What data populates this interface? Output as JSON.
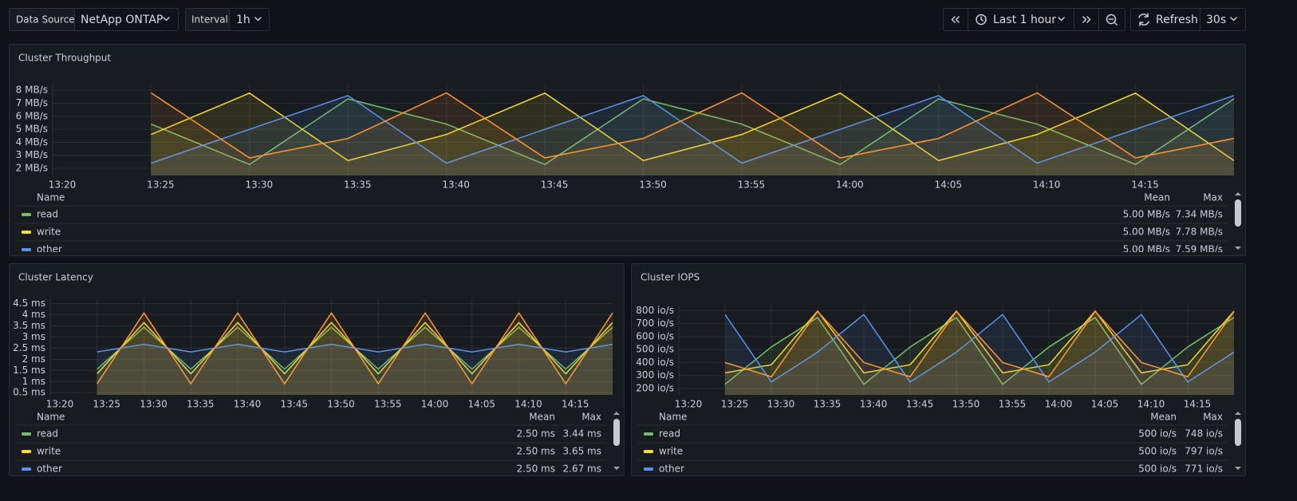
{
  "toolbar": {
    "data_source_label": "Data Source",
    "data_source": "NetApp ONTAP",
    "interval_label": "Interval",
    "interval": "1h",
    "time_range": "Last 1 hour",
    "refresh": "Refresh",
    "refresh_interval": "30s"
  },
  "chart_data": [
    {
      "type": "line",
      "title": "Cluster Throughput",
      "x": [
        "13:25",
        "13:30",
        "13:35",
        "13:40",
        "13:45",
        "13:50",
        "13:55",
        "14:00",
        "14:05",
        "14:10",
        "14:15",
        "14:20"
      ],
      "xlim": [
        "13:20",
        "14:20"
      ],
      "xticks": [
        "13:20",
        "13:25",
        "13:30",
        "13:35",
        "13:40",
        "13:45",
        "13:50",
        "13:55",
        "14:00",
        "14:05",
        "14:10",
        "14:15"
      ],
      "ylim": [
        1.45,
        8.5
      ],
      "yticks": [
        {
          "value": 2,
          "label": "2 MB/s"
        },
        {
          "value": 3,
          "label": "3 MB/s"
        },
        {
          "value": 4,
          "label": "4 MB/s"
        },
        {
          "value": 5,
          "label": "5 MB/s"
        },
        {
          "value": 6,
          "label": "6 MB/s"
        },
        {
          "value": 7,
          "label": "7 MB/s"
        },
        {
          "value": 8,
          "label": "8 MB/s"
        }
      ],
      "grid": true,
      "fill": true,
      "legend_header": [
        "Name",
        "Mean",
        "Max"
      ],
      "series": [
        {
          "name": "read",
          "color": "#73bf69",
          "values": [
            5.4,
            2.3,
            7.34,
            5.4,
            2.3,
            7.34,
            5.4,
            2.3,
            7.34,
            5.4,
            2.3,
            7.34
          ],
          "stats": [
            "5.00 MB/s",
            "7.34 MB/s"
          ]
        },
        {
          "name": "write",
          "color": "#fade2a",
          "values": [
            4.6,
            7.78,
            2.6,
            4.6,
            7.78,
            2.6,
            4.6,
            7.78,
            2.6,
            4.6,
            7.78,
            2.6
          ],
          "stats": [
            "5.00 MB/s",
            "7.78 MB/s"
          ]
        },
        {
          "name": "other",
          "color": "#5794f2",
          "values": [
            2.4,
            5.0,
            7.59,
            2.4,
            5.0,
            7.59,
            2.4,
            5.0,
            7.59,
            2.4,
            5.0,
            7.59
          ],
          "stats": [
            "5.00 MB/s",
            "7.59 MB/s"
          ]
        },
        {
          "color": "#ff9830",
          "values": [
            7.8,
            2.8,
            4.3,
            7.8,
            2.8,
            4.3,
            7.8,
            2.8,
            4.3,
            7.8,
            2.8,
            4.3
          ]
        }
      ]
    },
    {
      "type": "line",
      "title": "Cluster Latency",
      "x": [
        "13:25",
        "13:30",
        "13:35",
        "13:40",
        "13:45",
        "13:50",
        "13:55",
        "14:00",
        "14:05",
        "14:10",
        "14:15",
        "14:20"
      ],
      "xlim": [
        "13:20",
        "14:20"
      ],
      "xticks": [
        "13:20",
        "13:25",
        "13:30",
        "13:35",
        "13:40",
        "13:45",
        "13:50",
        "13:55",
        "14:00",
        "14:05",
        "14:10",
        "14:15"
      ],
      "ylim": [
        0.4,
        4.7
      ],
      "yticks": [
        {
          "value": 0.5,
          "label": "0.5 ms"
        },
        {
          "value": 1,
          "label": "1 ms"
        },
        {
          "value": 1.5,
          "label": "1.5 ms"
        },
        {
          "value": 2,
          "label": "2 ms"
        },
        {
          "value": 2.5,
          "label": "2.5 ms"
        },
        {
          "value": 3,
          "label": "3 ms"
        },
        {
          "value": 3.5,
          "label": "3.5 ms"
        },
        {
          "value": 4,
          "label": "4 ms"
        },
        {
          "value": 4.5,
          "label": "4.5 ms"
        }
      ],
      "grid": true,
      "fill": true,
      "legend_header": [
        "Name",
        "Mean",
        "Max"
      ],
      "series": [
        {
          "name": "read",
          "color": "#73bf69",
          "values": [
            1.56,
            3.44,
            1.56,
            3.44,
            1.56,
            3.44,
            1.56,
            3.44,
            1.56,
            3.44,
            1.56,
            3.44
          ],
          "stats": [
            "2.50 ms",
            "3.44 ms"
          ]
        },
        {
          "name": "write",
          "color": "#fade2a",
          "values": [
            1.35,
            3.65,
            1.35,
            3.65,
            1.35,
            3.65,
            1.35,
            3.65,
            1.35,
            3.65,
            1.35,
            3.65
          ],
          "stats": [
            "2.50 ms",
            "3.65 ms"
          ]
        },
        {
          "name": "other",
          "color": "#5794f2",
          "values": [
            2.33,
            2.67,
            2.33,
            2.67,
            2.33,
            2.67,
            2.33,
            2.67,
            2.33,
            2.67,
            2.33,
            2.67
          ],
          "stats": [
            "2.50 ms",
            "2.67 ms"
          ]
        },
        {
          "color": "#ff9830",
          "values": [
            0.9,
            4.08,
            0.9,
            4.08,
            0.9,
            4.08,
            0.9,
            4.08,
            0.9,
            4.08,
            0.9,
            4.08
          ]
        }
      ]
    },
    {
      "type": "line",
      "title": "Cluster IOPS",
      "x": [
        "13:25",
        "13:30",
        "13:35",
        "13:40",
        "13:45",
        "13:50",
        "13:55",
        "14:00",
        "14:05",
        "14:10",
        "14:15",
        "14:20"
      ],
      "xlim": [
        "13:20",
        "14:20"
      ],
      "xticks": [
        "13:20",
        "13:25",
        "13:30",
        "13:35",
        "13:40",
        "13:45",
        "13:50",
        "13:55",
        "14:00",
        "14:05",
        "14:10",
        "14:15"
      ],
      "ylim": [
        150,
        840
      ],
      "yticks": [
        {
          "value": 200,
          "label": "200 io/s"
        },
        {
          "value": 300,
          "label": "300 io/s"
        },
        {
          "value": 400,
          "label": "400 io/s"
        },
        {
          "value": 500,
          "label": "500 io/s"
        },
        {
          "value": 600,
          "label": "600 io/s"
        },
        {
          "value": 700,
          "label": "700 io/s"
        },
        {
          "value": 800,
          "label": "800 io/s"
        }
      ],
      "grid": true,
      "fill": true,
      "legend_header": [
        "Name",
        "Mean",
        "Max"
      ],
      "series": [
        {
          "name": "read",
          "color": "#73bf69",
          "values": [
            232,
            520,
            748,
            232,
            520,
            748,
            232,
            520,
            748,
            232,
            520,
            748
          ],
          "stats": [
            "500 io/s",
            "748 io/s"
          ]
        },
        {
          "name": "write",
          "color": "#fade2a",
          "values": [
            320,
            383,
            797,
            320,
            383,
            797,
            320,
            383,
            797,
            320,
            383,
            797
          ],
          "stats": [
            "500 io/s",
            "797 io/s"
          ]
        },
        {
          "name": "other",
          "color": "#5794f2",
          "values": [
            771,
            250,
            480,
            771,
            250,
            480,
            771,
            250,
            480,
            771,
            250,
            480
          ],
          "stats": [
            "500 io/s",
            "771 io/s"
          ]
        },
        {
          "color": "#ff9830",
          "values": [
            400,
            290,
            795,
            400,
            290,
            795,
            400,
            290,
            795,
            400,
            290,
            795
          ]
        }
      ]
    }
  ]
}
